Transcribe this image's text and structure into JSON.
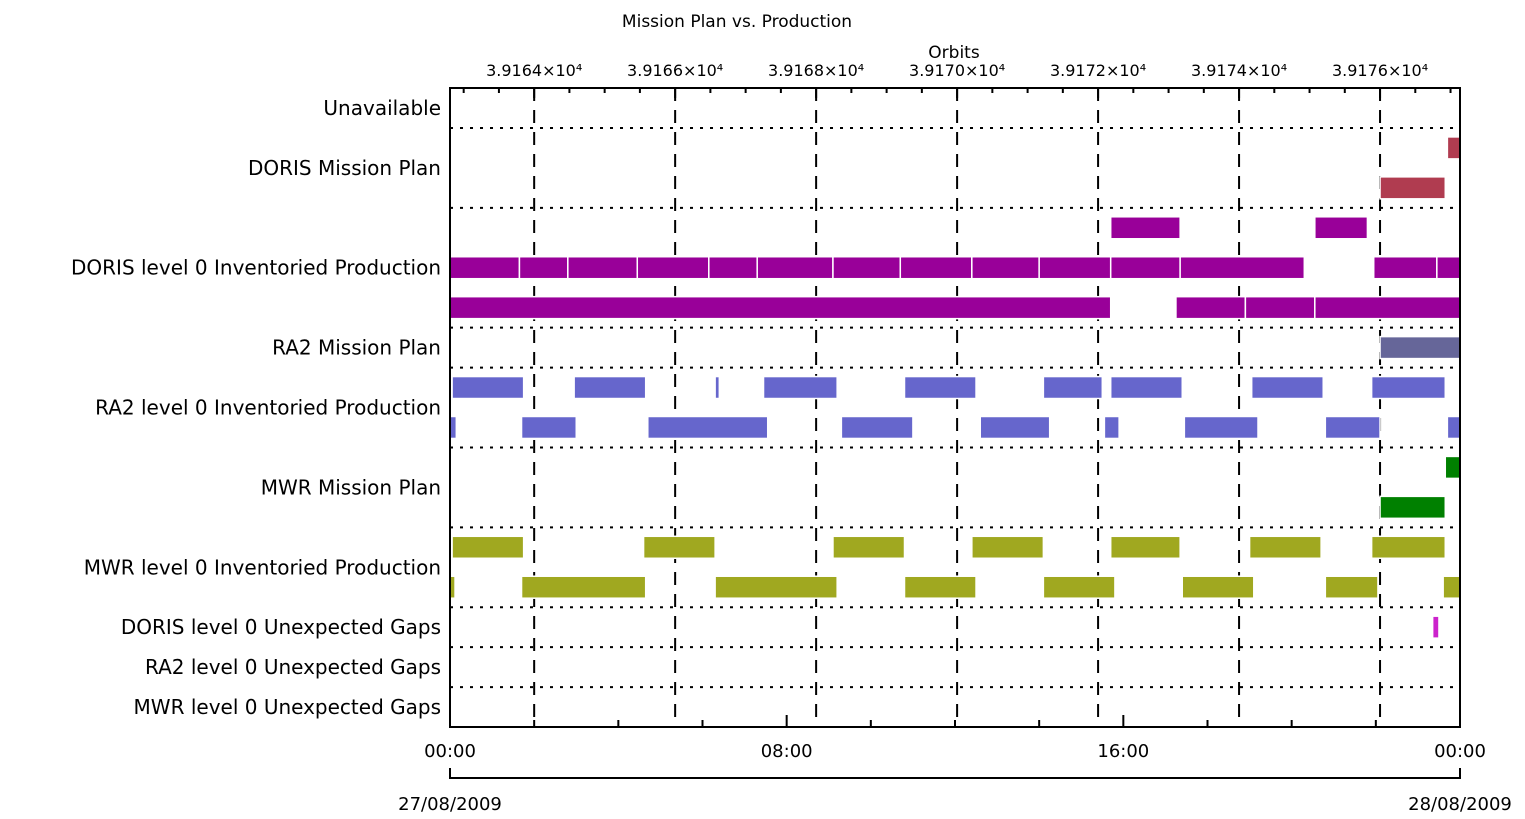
{
  "chart_data": {
    "type": "gantt",
    "title": "Mission Plan vs. Production",
    "top_axis": {
      "label": "Orbits",
      "tick_labels": [
        "3.9164×10⁴",
        "3.9166×10⁴",
        "3.9168×10⁴",
        "3.9170×10⁴",
        "3.9172×10⁴",
        "3.9174×10⁴",
        "3.9176×10⁴"
      ],
      "tick_hours": [
        2.0,
        5.35,
        8.7,
        12.05,
        15.4,
        18.75,
        22.1
      ]
    },
    "bottom_axis": {
      "tick_labels": [
        "00:00",
        "08:00",
        "16:00",
        "00:00"
      ],
      "tick_hours": [
        0,
        8,
        16,
        24
      ],
      "start_date": "27/08/2009",
      "end_date": "28/08/2009"
    },
    "x_range_hours": [
      0,
      24
    ],
    "grid": true,
    "rows": [
      {
        "label": "Unavailable",
        "color": "#000000",
        "tracks": [
          []
        ]
      },
      {
        "label": "DORIS Mission Plan",
        "color": "#b03c50",
        "tracks": [
          [
            [
              23.7,
              24.0
            ]
          ],
          [
            [
              22.1,
              23.65
            ]
          ]
        ]
      },
      {
        "label": "DORIS level 0 Inventoried Production",
        "color": "#990099",
        "tracks": [
          [
            [
              15.7,
              17.35
            ],
            [
              20.55,
              21.8
            ]
          ],
          [
            [
              0,
              1.65
            ],
            [
              1.65,
              2.8
            ],
            [
              2.8,
              4.45
            ],
            [
              4.45,
              6.15
            ],
            [
              6.15,
              7.3
            ],
            [
              7.3,
              9.1
            ],
            [
              9.1,
              10.7
            ],
            [
              10.7,
              12.4
            ],
            [
              12.4,
              14.0
            ],
            [
              14.0,
              15.7
            ],
            [
              15.7,
              17.35
            ],
            [
              17.35,
              20.3
            ],
            [
              21.95,
              23.45
            ],
            [
              23.45,
              24.0
            ]
          ],
          [
            [
              0,
              15.7
            ],
            [
              17.25,
              18.9
            ],
            [
              18.9,
              20.55
            ],
            [
              20.55,
              24.0
            ]
          ]
        ]
      },
      {
        "label": "RA2 Mission Plan",
        "color": "#666699",
        "tracks": [
          [
            [
              22.1,
              24.0
            ]
          ]
        ]
      },
      {
        "label": "RA2 level 0 Inventoried Production",
        "color": "#6666cc",
        "tracks": [
          [
            [
              0.05,
              1.75
            ],
            [
              2.95,
              4.65
            ],
            [
              6.3,
              6.4
            ],
            [
              7.45,
              9.2
            ],
            [
              10.8,
              12.5
            ],
            [
              14.1,
              15.5
            ],
            [
              15.7,
              17.4
            ],
            [
              19.05,
              20.75
            ],
            [
              21.9,
              23.65
            ]
          ],
          [
            [
              0,
              0.15
            ],
            [
              1.7,
              3.0
            ],
            [
              4.7,
              7.55
            ],
            [
              9.3,
              11.0
            ],
            [
              12.6,
              14.25
            ],
            [
              15.55,
              15.9
            ],
            [
              17.45,
              19.2
            ],
            [
              20.8,
              22.1
            ],
            [
              23.7,
              24.0
            ]
          ]
        ]
      },
      {
        "label": "MWR Mission Plan",
        "color": "#008000",
        "tracks": [
          [
            [
              23.65,
              24.0
            ]
          ],
          [
            [
              22.1,
              23.65
            ]
          ]
        ]
      },
      {
        "label": "MWR level 0 Inventoried Production",
        "color": "#a0a820",
        "tracks": [
          [
            [
              0.05,
              1.75
            ],
            [
              4.6,
              6.3
            ],
            [
              9.1,
              10.8
            ],
            [
              12.4,
              14.1
            ],
            [
              15.7,
              17.35
            ],
            [
              19.0,
              20.7
            ],
            [
              21.9,
              23.65
            ]
          ],
          [
            [
              0,
              0.12
            ],
            [
              1.7,
              4.65
            ],
            [
              6.3,
              9.2
            ],
            [
              10.8,
              12.5
            ],
            [
              14.1,
              15.8
            ],
            [
              17.4,
              19.1
            ],
            [
              20.8,
              22.05
            ],
            [
              23.6,
              24.0
            ]
          ]
        ]
      },
      {
        "label": "DORIS level 0 Unexpected Gaps",
        "color": "#cc22cc",
        "tracks": [
          [
            [
              23.35,
              23.5
            ]
          ]
        ]
      },
      {
        "label": "RA2 level 0 Unexpected Gaps",
        "color": "#000000",
        "tracks": [
          []
        ]
      },
      {
        "label": "MWR level 0 Unexpected Gaps",
        "color": "#000000",
        "tracks": [
          []
        ]
      }
    ]
  }
}
